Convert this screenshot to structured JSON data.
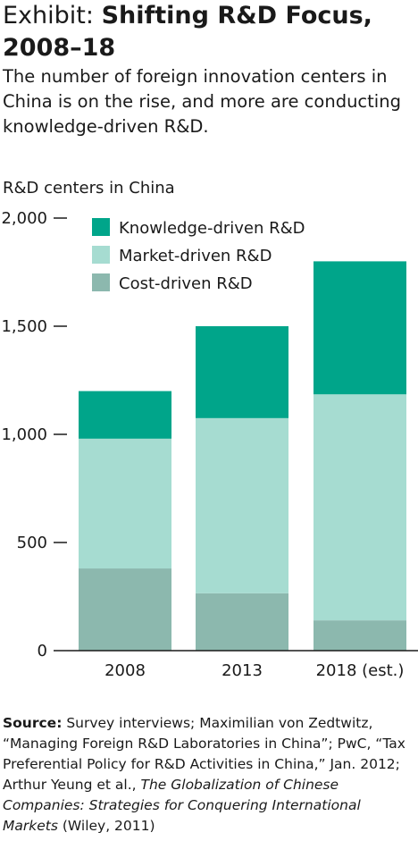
{
  "header": {
    "title_prefix": "Exhibit: ",
    "title_bold": "Shifting R&D Focus, 2008–18",
    "subtitle": "The number of foreign innovation centers in China is on the rise, and more are conducting knowledge-driven R&D."
  },
  "chart_data": {
    "type": "bar",
    "stacked": true,
    "ylabel": "R&D centers in China",
    "categories": [
      "2008",
      "2013",
      "2018 (est.)"
    ],
    "ylim": [
      0,
      2000
    ],
    "yticks": [
      0,
      500,
      1000,
      1500,
      2000
    ],
    "ytick_labels": [
      "0",
      "500",
      "1,000",
      "1,500",
      "2,000"
    ],
    "series": [
      {
        "name": "Cost-driven R&D",
        "values": [
          380,
          265,
          140
        ],
        "color": "#8cb8ae"
      },
      {
        "name": "Market-driven R&D",
        "values": [
          600,
          810,
          1045
        ],
        "color": "#a6dcd1"
      },
      {
        "name": "Knowledge-driven R&D",
        "values": [
          220,
          425,
          615
        ],
        "color": "#00a58a"
      }
    ],
    "legend_order": [
      "Knowledge-driven R&D",
      "Market-driven R&D",
      "Cost-driven R&D"
    ],
    "legend_position": "top-left",
    "grid": false
  },
  "source": {
    "label": "Source:",
    "text_1": " Survey interviews; Maximilian von Zedtwitz, “Managing Foreign R&D Laboratories in China”; PwC, “Tax Preferential Policy for R&D Activities in China,” Jan. 2012; Arthur Yeung et al., ",
    "italic": "The Globalization of Chinese Companies: Strategies for Conquering International Markets",
    "text_2": " (Wiley, 2011)"
  }
}
